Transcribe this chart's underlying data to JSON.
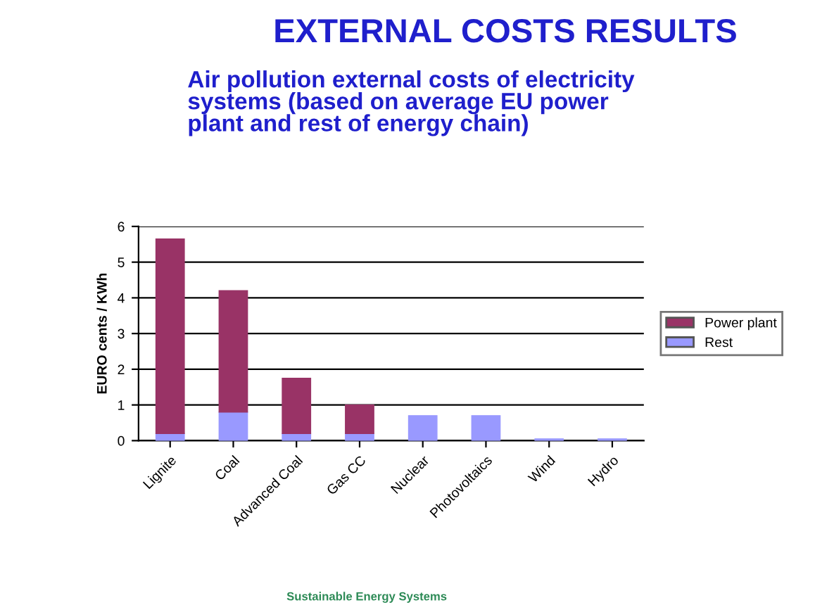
{
  "chart_data": {
    "type": "bar",
    "title": "EXTERNAL COSTS RESULTS",
    "subtitle": "Air pollution external costs of electricity\nsystems (based on average EU power\nplant and rest of energy chain)",
    "ylabel": "EURO cents / KWh",
    "categories": [
      "Lignite",
      "Coal",
      "Advanced Coal",
      "Gas CC",
      "Nuclear",
      "Photovoltaics",
      "Wind",
      "Hydro"
    ],
    "stacked": true,
    "series": [
      {
        "name": "Rest",
        "color": "#9999ff",
        "values": [
          0.2,
          0.8,
          0.2,
          0.2,
          0.7,
          0.7,
          0.05,
          0.05
        ]
      },
      {
        "name": "Power plant",
        "color": "#993366",
        "values": [
          5.45,
          3.4,
          1.55,
          0.8,
          null,
          null,
          null,
          null
        ]
      }
    ],
    "ylim": [
      0,
      6
    ],
    "yticks": [
      0,
      1,
      2,
      3,
      4,
      5,
      6
    ],
    "grid": "y",
    "legend": "right",
    "annotations": [
      "Sustainable Energy Systems"
    ]
  }
}
